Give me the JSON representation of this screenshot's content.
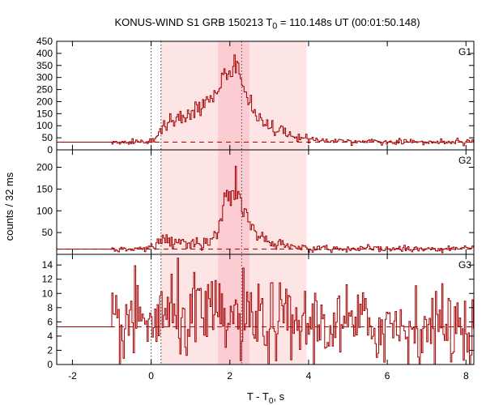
{
  "chart_data": {
    "type": "line",
    "title": {
      "prefix": "KONUS-WIND S1 GRB 150213 T",
      "sub": "0",
      "suffix": " = 110.148s UT (00:01:50.148)"
    },
    "xlabel": {
      "prefix": "T - T",
      "sub": "0",
      "suffix": ", s"
    },
    "ylabel": "counts / 32 ms",
    "xlim": [
      -2.4,
      8.2
    ],
    "xticks": [
      "-2",
      "0",
      "2",
      "4",
      "6",
      "8"
    ],
    "xtick_values": [
      -2,
      0,
      2,
      4,
      6,
      8
    ],
    "shaded_intervals": [
      [
        0.25,
        3.95
      ],
      [
        1.7,
        2.5
      ]
    ],
    "vertical_lines": [
      0,
      0.25,
      2.3
    ],
    "colors": {
      "series": "#a00000",
      "shade_light": "#fde5e5",
      "shade_dark": "#fbcdd3",
      "background_fit": "#c00000"
    },
    "panels": [
      {
        "name": "G1",
        "ylim": [
          0,
          450
        ],
        "yticks": [
          "0",
          "50",
          "100",
          "150",
          "200",
          "250",
          "300",
          "350",
          "400",
          "450"
        ],
        "ytick_values": [
          0,
          50,
          100,
          150,
          200,
          250,
          300,
          350,
          400,
          450
        ],
        "background_level": 32,
        "baseline": 32,
        "noise": 5,
        "pulses": [
          {
            "t": 0.35,
            "amp": 65,
            "rise": 0.15,
            "decay": 1.2
          },
          {
            "t": 1.3,
            "amp": 95,
            "rise": 0.5,
            "decay": 0.8
          },
          {
            "t": 2.1,
            "amp": 240,
            "rise": 0.4,
            "decay": 0.55
          },
          {
            "t": 2.2,
            "amp": 70,
            "rise": 0.08,
            "decay": 0.15
          }
        ]
      },
      {
        "name": "G2",
        "ylim": [
          0,
          240
        ],
        "yticks": [
          "50",
          "100",
          "150",
          "200"
        ],
        "ytick_values": [
          50,
          100,
          150,
          200
        ],
        "background_level": 12,
        "baseline": 12,
        "noise": 3,
        "pulses": [
          {
            "t": 0.3,
            "amp": 22,
            "rise": 0.15,
            "decay": 1.6
          },
          {
            "t": 1.95,
            "amp": 80,
            "rise": 0.2,
            "decay": 0.35
          },
          {
            "t": 2.2,
            "amp": 90,
            "rise": 0.15,
            "decay": 0.3
          },
          {
            "t": 1.9,
            "amp": 40,
            "rise": 0.06,
            "decay": 0.08
          }
        ]
      },
      {
        "name": "G3",
        "ylim": [
          0,
          15.5
        ],
        "yticks": [
          "0",
          "2",
          "4",
          "6",
          "8",
          "10",
          "12",
          "14"
        ],
        "ytick_values": [
          0,
          2,
          4,
          6,
          8,
          10,
          12,
          14
        ],
        "background_level": 5.3,
        "baseline": 5.3,
        "noise": 2.6,
        "pulses": [
          {
            "t": 1.0,
            "amp": 1.5,
            "rise": 1.0,
            "decay": 2.0
          }
        ]
      }
    ]
  }
}
